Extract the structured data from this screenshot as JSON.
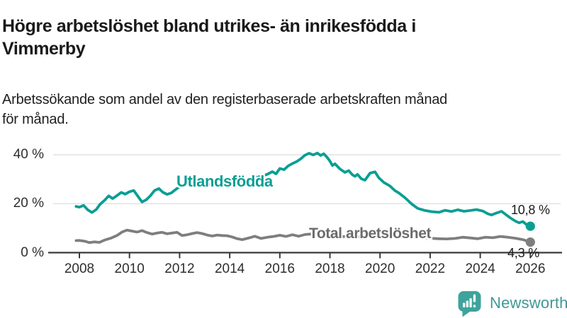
{
  "header": {
    "title": "Högre arbetslöshet bland utrikes- än inrikesfödda i\nVimmerby",
    "subtitle": "Arbetssökande som andel av den registerbaserade arbetskraften månad\nför månad."
  },
  "footer": {
    "wordmark": "Newsworthy",
    "logo_icon": "bar-chart-speech-bubble-icon"
  },
  "colors": {
    "title_text": "#1a1a1a",
    "teal_line": "#0a9e94",
    "gray_line": "#7e7e7e",
    "gray_label": "#6b6b6b",
    "axis": "#3a3a3a",
    "gridline": "#dbdbdb",
    "logo_teal": "#3ea39c",
    "wordmark_teal": "#3f9894"
  },
  "chart_data": {
    "type": "line",
    "title": "Högre arbetslöshet bland utrikes- än inrikesfödda i Vimmerby",
    "xlabel": "",
    "ylabel": "Arbetssökande som andel av den registerbaserade arbetskraften",
    "grid": "horizontal",
    "legend_position": "inline-labels-on-lines",
    "x": {
      "tick_years": [
        2008,
        2010,
        2012,
        2014,
        2016,
        2018,
        2020,
        2022,
        2024,
        2026
      ],
      "range": [
        2007.87,
        2026.35
      ]
    },
    "y": {
      "ticks": [
        {
          "value": 0,
          "label": "0 %"
        },
        {
          "value": 20,
          "label": "20 %"
        },
        {
          "value": 40,
          "label": "40 %"
        }
      ],
      "range": [
        0,
        43
      ]
    },
    "series": [
      {
        "name": "Utlandsfödda",
        "color": "#0a9e94",
        "end_label": "10,8 %",
        "end_value": 10.8,
        "points": [
          [
            2007.87,
            18.9
          ],
          [
            2008.0,
            18.6
          ],
          [
            2008.17,
            19.3
          ],
          [
            2008.33,
            17.5
          ],
          [
            2008.5,
            16.4
          ],
          [
            2008.67,
            17.6
          ],
          [
            2008.83,
            19.8
          ],
          [
            2009.0,
            21.3
          ],
          [
            2009.17,
            23.2
          ],
          [
            2009.33,
            22.1
          ],
          [
            2009.5,
            23.3
          ],
          [
            2009.67,
            24.6
          ],
          [
            2009.83,
            23.9
          ],
          [
            2010.0,
            24.9
          ],
          [
            2010.17,
            25.4
          ],
          [
            2010.33,
            23.1
          ],
          [
            2010.5,
            20.7
          ],
          [
            2010.67,
            21.6
          ],
          [
            2010.83,
            23.2
          ],
          [
            2011.0,
            25.4
          ],
          [
            2011.17,
            26.2
          ],
          [
            2011.33,
            24.7
          ],
          [
            2011.5,
            23.8
          ],
          [
            2011.67,
            24.4
          ],
          [
            2011.83,
            25.7
          ],
          [
            2012.0,
            27.0
          ],
          [
            2012.25,
            27.7
          ],
          [
            2012.5,
            27.2
          ],
          [
            2012.75,
            28.0
          ],
          [
            2013.0,
            28.4
          ],
          [
            2013.25,
            27.9
          ],
          [
            2013.5,
            28.7
          ],
          [
            2013.75,
            28.3
          ],
          [
            2014.0,
            29.1
          ],
          [
            2014.25,
            29.6
          ],
          [
            2014.5,
            29.2
          ],
          [
            2014.75,
            30.0
          ],
          [
            2015.0,
            30.5
          ],
          [
            2015.25,
            31.2
          ],
          [
            2015.5,
            32.0
          ],
          [
            2015.7,
            33.1
          ],
          [
            2015.85,
            32.2
          ],
          [
            2016.0,
            34.4
          ],
          [
            2016.17,
            33.9
          ],
          [
            2016.33,
            35.4
          ],
          [
            2016.5,
            36.4
          ],
          [
            2016.67,
            37.2
          ],
          [
            2016.83,
            38.3
          ],
          [
            2017.0,
            39.8
          ],
          [
            2017.17,
            40.6
          ],
          [
            2017.33,
            39.9
          ],
          [
            2017.5,
            40.7
          ],
          [
            2017.63,
            39.7
          ],
          [
            2017.75,
            40.4
          ],
          [
            2017.9,
            38.8
          ],
          [
            2018.0,
            37.4
          ],
          [
            2018.1,
            35.6
          ],
          [
            2018.2,
            36.3
          ],
          [
            2018.4,
            34.2
          ],
          [
            2018.6,
            32.8
          ],
          [
            2018.75,
            33.5
          ],
          [
            2018.9,
            31.8
          ],
          [
            2019.0,
            31.2
          ],
          [
            2019.1,
            32.0
          ],
          [
            2019.25,
            30.2
          ],
          [
            2019.4,
            29.6
          ],
          [
            2019.6,
            32.5
          ],
          [
            2019.8,
            33.0
          ],
          [
            2019.95,
            30.6
          ],
          [
            2020.15,
            28.7
          ],
          [
            2020.4,
            27.2
          ],
          [
            2020.6,
            25.3
          ],
          [
            2020.75,
            24.4
          ],
          [
            2021.0,
            22.4
          ],
          [
            2021.25,
            20.0
          ],
          [
            2021.5,
            18.1
          ],
          [
            2021.8,
            17.2
          ],
          [
            2022.1,
            16.7
          ],
          [
            2022.35,
            16.5
          ],
          [
            2022.6,
            17.3
          ],
          [
            2022.85,
            16.8
          ],
          [
            2023.1,
            17.5
          ],
          [
            2023.35,
            16.9
          ],
          [
            2023.6,
            17.2
          ],
          [
            2023.85,
            17.6
          ],
          [
            2024.1,
            17.0
          ],
          [
            2024.3,
            15.9
          ],
          [
            2024.45,
            15.4
          ],
          [
            2024.65,
            16.2
          ],
          [
            2024.85,
            16.9
          ],
          [
            2025.0,
            15.7
          ],
          [
            2025.2,
            14.2
          ],
          [
            2025.4,
            12.9
          ],
          [
            2025.55,
            12.2
          ],
          [
            2025.7,
            12.7
          ],
          [
            2025.85,
            11.4
          ],
          [
            2026.0,
            10.8
          ]
        ]
      },
      {
        "name": "Total arbetslöshet",
        "color": "#7e7e7e",
        "end_label": "4,3 %",
        "end_value": 4.3,
        "points": [
          [
            2007.87,
            4.9
          ],
          [
            2008.0,
            5.0
          ],
          [
            2008.2,
            4.7
          ],
          [
            2008.4,
            4.1
          ],
          [
            2008.6,
            4.4
          ],
          [
            2008.8,
            4.2
          ],
          [
            2009.0,
            5.1
          ],
          [
            2009.25,
            5.9
          ],
          [
            2009.5,
            7.0
          ],
          [
            2009.7,
            8.4
          ],
          [
            2009.9,
            9.2
          ],
          [
            2010.1,
            8.8
          ],
          [
            2010.3,
            8.4
          ],
          [
            2010.5,
            9.0
          ],
          [
            2010.7,
            8.2
          ],
          [
            2010.9,
            7.6
          ],
          [
            2011.1,
            8.0
          ],
          [
            2011.3,
            8.3
          ],
          [
            2011.5,
            7.7
          ],
          [
            2011.7,
            8.0
          ],
          [
            2011.9,
            8.3
          ],
          [
            2012.1,
            7.0
          ],
          [
            2012.3,
            7.3
          ],
          [
            2012.5,
            7.8
          ],
          [
            2012.7,
            8.2
          ],
          [
            2012.9,
            7.8
          ],
          [
            2013.1,
            7.2
          ],
          [
            2013.3,
            6.8
          ],
          [
            2013.5,
            7.2
          ],
          [
            2013.7,
            7.0
          ],
          [
            2013.9,
            6.9
          ],
          [
            2014.1,
            6.4
          ],
          [
            2014.3,
            5.7
          ],
          [
            2014.5,
            5.3
          ],
          [
            2014.8,
            6.1
          ],
          [
            2015.0,
            6.7
          ],
          [
            2015.25,
            5.8
          ],
          [
            2015.5,
            6.3
          ],
          [
            2015.75,
            6.6
          ],
          [
            2016.0,
            7.1
          ],
          [
            2016.25,
            6.6
          ],
          [
            2016.5,
            7.3
          ],
          [
            2016.75,
            6.7
          ],
          [
            2017.0,
            7.4
          ],
          [
            2017.25,
            7.6
          ],
          [
            2017.5,
            7.2
          ],
          [
            2017.75,
            6.9
          ],
          [
            2018.0,
            6.8
          ],
          [
            2018.33,
            6.5
          ],
          [
            2018.67,
            6.6
          ],
          [
            2019.0,
            6.7
          ],
          [
            2019.33,
            6.3
          ],
          [
            2019.67,
            6.5
          ],
          [
            2020.0,
            7.0
          ],
          [
            2020.25,
            7.5
          ],
          [
            2020.5,
            7.2
          ],
          [
            2020.75,
            7.0
          ],
          [
            2021.0,
            6.7
          ],
          [
            2021.33,
            6.3
          ],
          [
            2021.67,
            6.1
          ],
          [
            2022.0,
            5.9
          ],
          [
            2022.33,
            5.7
          ],
          [
            2022.67,
            5.6
          ],
          [
            2023.0,
            5.8
          ],
          [
            2023.3,
            6.3
          ],
          [
            2023.6,
            6.0
          ],
          [
            2023.9,
            5.7
          ],
          [
            2024.2,
            6.3
          ],
          [
            2024.5,
            6.1
          ],
          [
            2024.8,
            6.6
          ],
          [
            2025.1,
            6.3
          ],
          [
            2025.4,
            5.9
          ],
          [
            2025.7,
            5.3
          ],
          [
            2026.0,
            4.3
          ]
        ]
      }
    ]
  }
}
